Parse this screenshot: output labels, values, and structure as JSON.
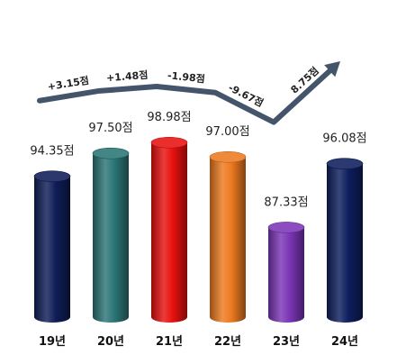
{
  "chart_data": {
    "type": "bar",
    "style": "3d-cylinder",
    "categories": [
      "19년",
      "20년",
      "21년",
      "22년",
      "23년",
      "24년"
    ],
    "values": [
      94.35,
      97.5,
      98.98,
      97.0,
      87.33,
      96.08
    ],
    "value_labels": [
      "94.35점",
      "97.50점",
      "98.98점",
      "97.00점",
      "87.33점",
      "96.08점"
    ],
    "bar_colors": [
      "#0f1d57",
      "#2b7576",
      "#e8110f",
      "#ed7a20",
      "#7b35b6",
      "#0e1e5e"
    ],
    "trend": {
      "color": "#44546a",
      "changes": [
        "+3.15점",
        "+1.48점",
        "-1.98점",
        "-9.67점",
        "8.75점"
      ]
    },
    "ylim": [
      75,
      100
    ],
    "grid": false,
    "title": "",
    "xlabel": "",
    "ylabel": ""
  }
}
